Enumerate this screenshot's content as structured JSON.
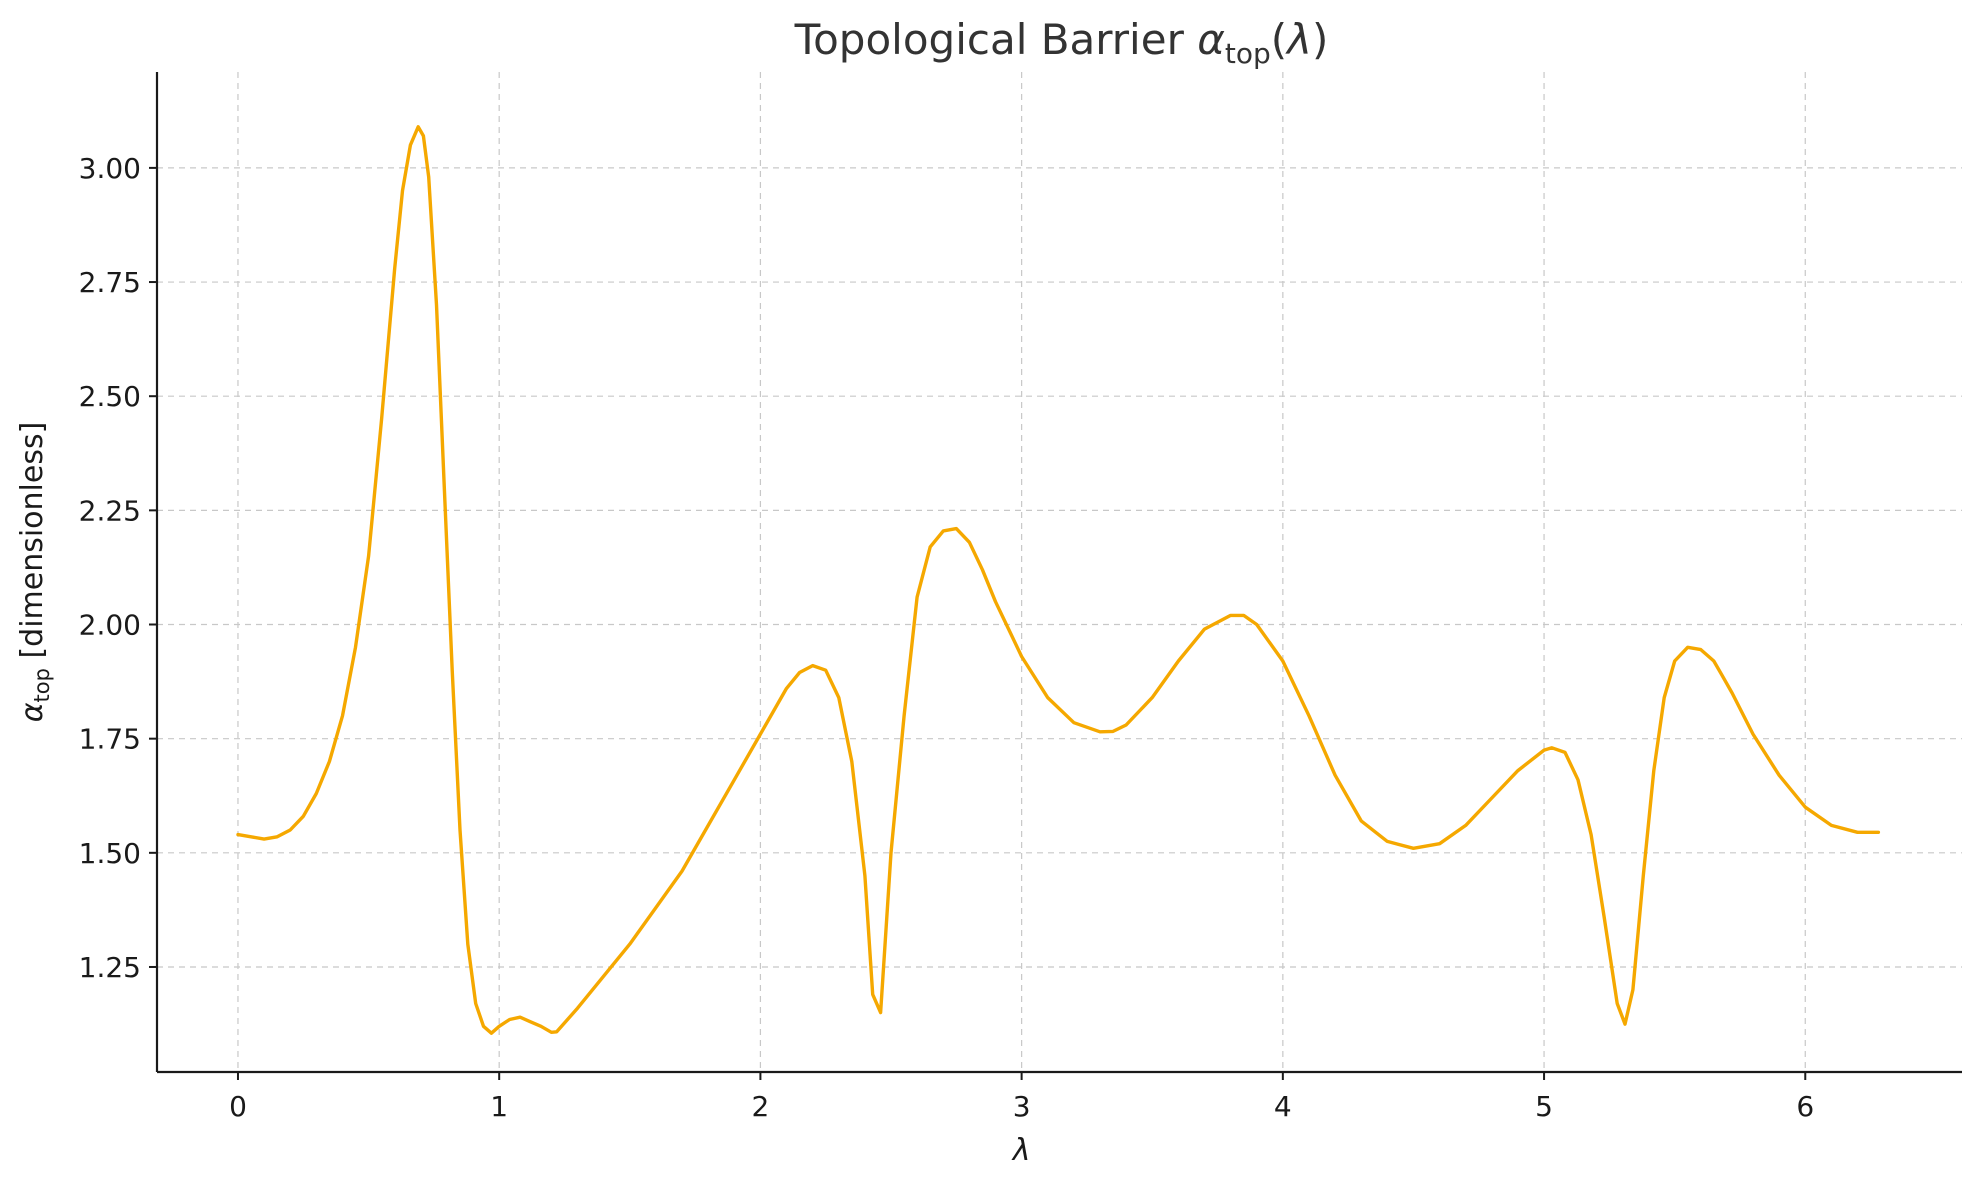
{
  "chart_data": {
    "type": "line",
    "title": {
      "main": "Topological Barrier ",
      "symbol": "α",
      "sub": "top",
      "arg_open": "(",
      "arg": "λ",
      "arg_close": ")"
    },
    "xlabel": "λ",
    "ylabel": {
      "symbol": "α",
      "sub": "top",
      "rest": " [dimensionless]"
    },
    "xlim": [
      -0.31,
      6.6
    ],
    "ylim": [
      1.02,
      3.21
    ],
    "xticks": [
      0,
      1,
      2,
      3,
      4,
      5,
      6
    ],
    "xtick_labels": [
      "0",
      "1",
      "2",
      "3",
      "4",
      "5",
      "6"
    ],
    "yticks": [
      1.25,
      1.5,
      1.75,
      2.0,
      2.25,
      2.5,
      2.75,
      3.0
    ],
    "ytick_labels": [
      "1.25",
      "1.50",
      "1.75",
      "2.00",
      "2.25",
      "2.50",
      "2.75",
      "3.00"
    ],
    "grid": true,
    "legend": "none",
    "color": "#f5a800",
    "series": [
      {
        "x": [
          0.0,
          0.05,
          0.1,
          0.15,
          0.2,
          0.25,
          0.3,
          0.35,
          0.4,
          0.45,
          0.5,
          0.55,
          0.6,
          0.63,
          0.66,
          0.69,
          0.71,
          0.73,
          0.76,
          0.79,
          0.82,
          0.85,
          0.88,
          0.91,
          0.94,
          0.97,
          1.0,
          1.04,
          1.08,
          1.12,
          1.16,
          1.2,
          1.22,
          1.3,
          1.4,
          1.5,
          1.6,
          1.7,
          1.8,
          1.9,
          2.0,
          2.1,
          2.15,
          2.2,
          2.25,
          2.3,
          2.35,
          2.4,
          2.43,
          2.46,
          2.5,
          2.55,
          2.6,
          2.65,
          2.7,
          2.75,
          2.8,
          2.85,
          2.9,
          2.95,
          3.0,
          3.1,
          3.2,
          3.3,
          3.35,
          3.4,
          3.5,
          3.6,
          3.7,
          3.8,
          3.85,
          3.9,
          4.0,
          4.1,
          4.2,
          4.3,
          4.4,
          4.5,
          4.6,
          4.7,
          4.8,
          4.9,
          5.0,
          5.03,
          5.08,
          5.13,
          5.18,
          5.23,
          5.28,
          5.31,
          5.34,
          5.38,
          5.42,
          5.46,
          5.5,
          5.55,
          5.6,
          5.65,
          5.68,
          5.72,
          5.8,
          5.9,
          6.0,
          6.1,
          6.2,
          6.28
        ],
        "y": [
          1.54,
          1.535,
          1.53,
          1.535,
          1.55,
          1.58,
          1.63,
          1.7,
          1.8,
          1.95,
          2.15,
          2.45,
          2.78,
          2.95,
          3.05,
          3.09,
          3.07,
          2.98,
          2.7,
          2.3,
          1.9,
          1.55,
          1.3,
          1.17,
          1.12,
          1.105,
          1.12,
          1.135,
          1.14,
          1.13,
          1.12,
          1.107,
          1.108,
          1.16,
          1.23,
          1.3,
          1.38,
          1.46,
          1.56,
          1.66,
          1.76,
          1.86,
          1.895,
          1.91,
          1.9,
          1.84,
          1.7,
          1.45,
          1.19,
          1.15,
          1.5,
          1.8,
          2.06,
          2.17,
          2.205,
          2.21,
          2.18,
          2.12,
          2.05,
          1.99,
          1.93,
          1.84,
          1.785,
          1.765,
          1.766,
          1.78,
          1.84,
          1.92,
          1.99,
          2.02,
          2.02,
          2.0,
          1.92,
          1.8,
          1.67,
          1.57,
          1.525,
          1.51,
          1.52,
          1.56,
          1.62,
          1.68,
          1.725,
          1.73,
          1.72,
          1.66,
          1.54,
          1.36,
          1.17,
          1.125,
          1.2,
          1.45,
          1.68,
          1.84,
          1.92,
          1.95,
          1.945,
          1.92,
          1.89,
          1.85,
          1.76,
          1.67,
          1.6,
          1.56,
          1.545,
          1.545
        ]
      }
    ]
  }
}
